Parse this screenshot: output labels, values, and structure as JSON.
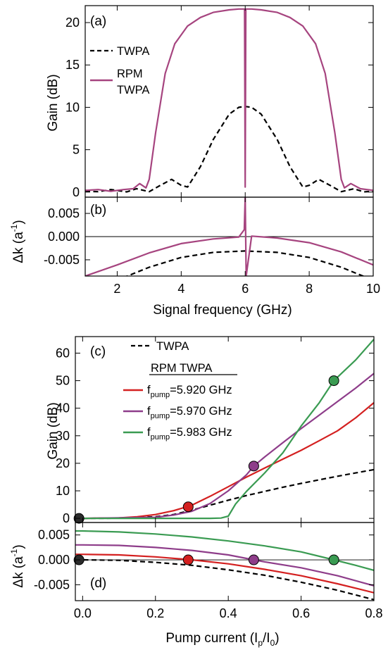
{
  "colors": {
    "twpa": "#000000",
    "rpm": "#a6447f",
    "red": "#d42020",
    "purple": "#8e3d8a",
    "green": "#3a9b52",
    "dot_dark": "#2b2b2b"
  },
  "chart_data": [
    {
      "type": "line",
      "panel": "(a)",
      "ylabel": "Gain (dB)",
      "xlim": [
        1,
        10
      ],
      "ylim": [
        -0.6,
        22
      ],
      "yticks": [
        "0",
        "5",
        "10",
        "15",
        "20"
      ],
      "legend": [
        "TWPA",
        "RPM",
        "TWPA"
      ],
      "series": [
        {
          "name": "TWPA",
          "style": "dashed",
          "x": [
            1.0,
            1.4,
            1.8,
            2.3,
            2.6,
            3.0,
            3.3,
            3.7,
            4.0,
            4.2,
            4.6,
            5.0,
            5.5,
            5.8,
            6.0,
            6.2,
            6.5,
            7.0,
            7.4,
            7.8,
            8.0,
            8.3,
            8.7,
            9.0,
            9.4,
            9.7,
            10.0
          ],
          "y": [
            0.1,
            0.05,
            0.3,
            0.02,
            0.4,
            0.05,
            0.7,
            1.5,
            0.8,
            0.6,
            3.0,
            6.2,
            9.2,
            10.0,
            10.1,
            10.0,
            9.2,
            6.2,
            3.0,
            0.6,
            0.8,
            1.5,
            0.7,
            0.05,
            0.4,
            0.02,
            0.1
          ]
        },
        {
          "name": "RPM TWPA",
          "style": "solid",
          "x": [
            1.0,
            1.4,
            1.8,
            2.2,
            2.5,
            2.7,
            2.9,
            3.0,
            3.2,
            3.5,
            3.8,
            4.2,
            4.6,
            5.0,
            5.5,
            5.8,
            5.98,
            6.0,
            6.02,
            6.2,
            6.5,
            7.0,
            7.4,
            7.8,
            8.2,
            8.5,
            8.8,
            9.0,
            9.1,
            9.3,
            9.6,
            10.0
          ],
          "y": [
            0.2,
            0.3,
            0.1,
            0.3,
            0.4,
            1.0,
            0.5,
            1.5,
            7.0,
            14.0,
            17.5,
            19.6,
            20.6,
            21.2,
            21.5,
            21.6,
            21.6,
            0.6,
            21.6,
            21.6,
            21.5,
            21.2,
            20.6,
            19.6,
            17.5,
            14.0,
            7.0,
            1.5,
            0.5,
            1.0,
            0.4,
            0.2
          ]
        }
      ]
    },
    {
      "type": "line",
      "panel": "(b)",
      "xlabel": "Signal frequency (GHz)",
      "ylabel": "Δk (a-1)",
      "xlim": [
        1,
        10
      ],
      "ylim": [
        -0.0085,
        0.0085
      ],
      "xticks": [
        "2",
        "4",
        "6",
        "8",
        "10"
      ],
      "yticks": [
        "0.005",
        "0.000",
        "-0.005"
      ],
      "series": [
        {
          "name": "TWPA",
          "style": "dashed",
          "x": [
            1.0,
            2.0,
            3.0,
            4.0,
            5.0,
            6.0,
            7.0,
            8.0,
            9.0,
            10.0
          ],
          "y": [
            -0.0119,
            -0.0094,
            -0.0066,
            -0.0045,
            -0.0034,
            -0.0031,
            -0.0034,
            -0.0045,
            -0.0066,
            -0.0094
          ]
        },
        {
          "name": "RPM TWPA",
          "style": "solid",
          "x": [
            1.0,
            2.0,
            3.0,
            4.0,
            5.0,
            5.8,
            5.97,
            6.0,
            6.03,
            6.2,
            7.0,
            8.0,
            9.0,
            10.0
          ],
          "y": [
            -0.0085,
            -0.0061,
            -0.0035,
            -0.0015,
            -0.0005,
            -0.0001,
            0.0015,
            0.0085,
            -0.0085,
            0.0001,
            -0.0003,
            -0.0013,
            -0.0033,
            -0.0061
          ]
        }
      ]
    },
    {
      "type": "line",
      "panel": "(c)",
      "ylabel": "Gain (dB)",
      "xlim": [
        -0.02,
        0.8
      ],
      "ylim": [
        -1.5,
        66
      ],
      "yticks": [
        "0",
        "10",
        "20",
        "30",
        "40",
        "50",
        "60"
      ],
      "legend_title": "RPM TWPA",
      "legend": [
        "TWPA",
        "f",
        "pump",
        "=5.920 GHz",
        "f",
        "pump",
        "=5.970 GHz",
        "f",
        "pump",
        "=5.983 GHz"
      ],
      "series": [
        {
          "name": "TWPA",
          "style": "dashed",
          "x": [
            0.0,
            0.1,
            0.2,
            0.25,
            0.3,
            0.35,
            0.4,
            0.45,
            0.5,
            0.55,
            0.6,
            0.65,
            0.7,
            0.75,
            0.8
          ],
          "y": [
            0.0,
            0.05,
            0.6,
            1.4,
            3.0,
            4.8,
            6.6,
            8.3,
            9.8,
            11.3,
            12.7,
            14.0,
            15.3,
            16.5,
            17.7
          ]
        },
        {
          "name": "f_pump=5.920 GHz",
          "style": "solid",
          "color": "red",
          "x": [
            0.0,
            0.1,
            0.15,
            0.2,
            0.25,
            0.3,
            0.35,
            0.4,
            0.45,
            0.5,
            0.55,
            0.6,
            0.65,
            0.7,
            0.75,
            0.8
          ],
          "y": [
            0.0,
            0.15,
            0.6,
            1.4,
            2.8,
            4.8,
            8.0,
            11.5,
            15.0,
            18.3,
            21.5,
            24.7,
            28.2,
            31.8,
            36.5,
            42.0
          ]
        },
        {
          "name": "f_pump=5.970 GHz",
          "style": "solid",
          "color": "purple",
          "x": [
            0.0,
            0.2,
            0.25,
            0.3,
            0.35,
            0.4,
            0.45,
            0.47,
            0.5,
            0.55,
            0.6,
            0.65,
            0.7,
            0.75,
            0.8
          ],
          "y": [
            0.0,
            0.4,
            1.2,
            2.6,
            5.4,
            10.0,
            15.8,
            19.0,
            22.3,
            27.5,
            32.6,
            37.5,
            42.4,
            47.3,
            52.6
          ]
        },
        {
          "name": "f_pump=5.983 GHz",
          "style": "solid",
          "color": "green",
          "x": [
            0.0,
            0.2,
            0.3,
            0.35,
            0.38,
            0.4,
            0.42,
            0.45,
            0.5,
            0.55,
            0.6,
            0.65,
            0.69,
            0.75,
            0.8
          ],
          "y": [
            0.0,
            0.0,
            0.0,
            0.0,
            0.1,
            0.8,
            5.2,
            9.8,
            16.5,
            23.8,
            33.5,
            42.0,
            50.0,
            57.5,
            65.0
          ]
        }
      ],
      "markers": [
        {
          "x": -0.01,
          "y": 0,
          "color": "dot_dark"
        },
        {
          "x": 0.29,
          "y": 4.2,
          "color": "red"
        },
        {
          "x": 0.47,
          "y": 19,
          "color": "purple"
        },
        {
          "x": 0.69,
          "y": 50,
          "color": "green"
        }
      ]
    },
    {
      "type": "line",
      "panel": "(d)",
      "xlabel": "Pump current (I",
      "xlabel_sub1": "p",
      "xlabel_mid": "/I",
      "xlabel_sub2": "0",
      "xlabel_end": ")",
      "ylabel": "Δk (a-1)",
      "xlim": [
        -0.02,
        0.8
      ],
      "ylim": [
        -0.0082,
        0.0075
      ],
      "xticks": [
        "0.0",
        "0.2",
        "0.4",
        "0.6",
        "0.8"
      ],
      "yticks": [
        "0.005",
        "0.000",
        "-0.005"
      ],
      "series": [
        {
          "name": "TWPA",
          "style": "dashed",
          "x": [
            -0.02,
            0.0,
            0.1,
            0.2,
            0.3,
            0.4,
            0.5,
            0.6,
            0.7,
            0.8
          ],
          "y": [
            0.0,
            0.0,
            -0.0001,
            -0.0005,
            -0.0011,
            -0.002,
            -0.0031,
            -0.0045,
            -0.0061,
            -0.008
          ]
        },
        {
          "name": "f_pump=5.920 GHz",
          "style": "solid",
          "color": "red",
          "x": [
            -0.02,
            0.0,
            0.1,
            0.2,
            0.3,
            0.4,
            0.5,
            0.6,
            0.7,
            0.8
          ],
          "y": [
            0.0011,
            0.0011,
            0.001,
            0.0006,
            0.0,
            -0.0008,
            -0.0019,
            -0.0032,
            -0.0048,
            -0.0066
          ]
        },
        {
          "name": "f_pump=5.970 GHz",
          "style": "solid",
          "color": "purple",
          "x": [
            -0.02,
            0.0,
            0.1,
            0.2,
            0.3,
            0.4,
            0.47,
            0.5,
            0.6,
            0.7,
            0.8
          ],
          "y": [
            0.003,
            0.003,
            0.0029,
            0.0025,
            0.0019,
            0.001,
            0.0,
            -0.0004,
            -0.0016,
            -0.0032,
            -0.0052
          ]
        },
        {
          "name": "f_pump=5.983 GHz",
          "style": "solid",
          "color": "green",
          "x": [
            -0.02,
            0.0,
            0.1,
            0.2,
            0.3,
            0.4,
            0.5,
            0.6,
            0.69,
            0.75,
            0.8
          ],
          "y": [
            0.0058,
            0.0058,
            0.0056,
            0.0052,
            0.0046,
            0.0038,
            0.0028,
            0.0016,
            0.0,
            -0.0011,
            -0.0021
          ]
        }
      ],
      "markers": [
        {
          "x": -0.01,
          "y": 0.0,
          "color": "dot_dark"
        },
        {
          "x": 0.29,
          "y": 0.0,
          "color": "red"
        },
        {
          "x": 0.47,
          "y": 0.0,
          "color": "purple"
        },
        {
          "x": 0.69,
          "y": 0.0,
          "color": "green"
        }
      ]
    }
  ]
}
